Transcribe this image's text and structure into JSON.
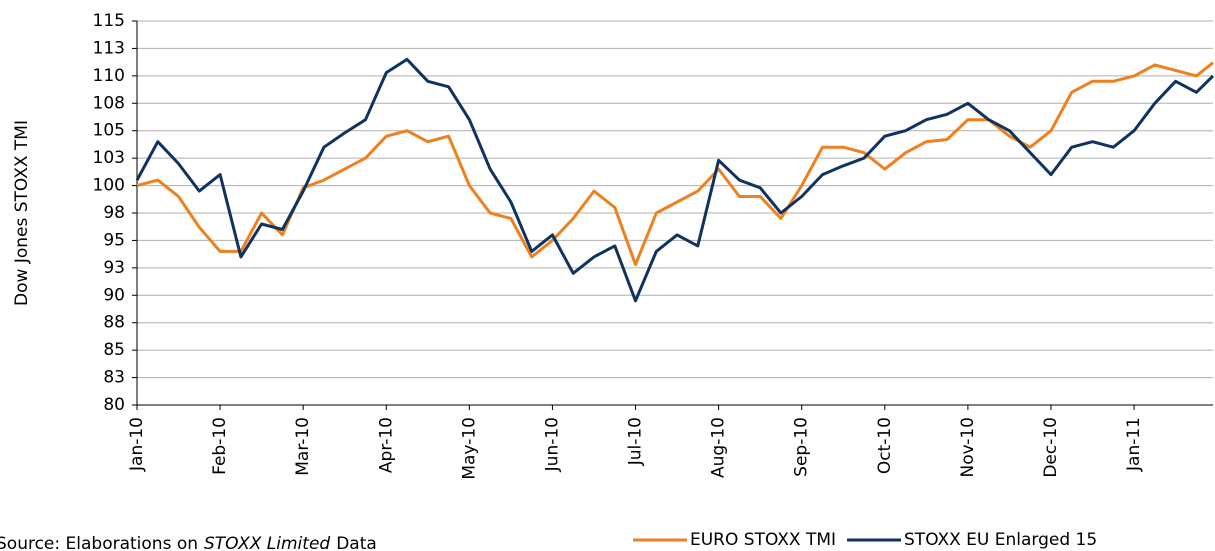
{
  "chart_data": {
    "type": "line",
    "y_label": "Dow Jones STOXX TMI",
    "source": {
      "prefix": "Source: Elaborations on",
      "emphasis": "STOXX Limited",
      "suffix": "Data"
    },
    "xlim": [
      0,
      12.95
    ],
    "xticks": [
      {
        "value": 0,
        "label": "Jan-10"
      },
      {
        "value": 1,
        "label": "Feb-10"
      },
      {
        "value": 2,
        "label": "Mar-10"
      },
      {
        "value": 3,
        "label": "Apr-10"
      },
      {
        "value": 4,
        "label": "May-10"
      },
      {
        "value": 5,
        "label": "Jun-10"
      },
      {
        "value": 6,
        "label": "Jul-10"
      },
      {
        "value": 7,
        "label": "Aug-10"
      },
      {
        "value": 8,
        "label": "Sep-10"
      },
      {
        "value": 9,
        "label": "Oct-10"
      },
      {
        "value": 10,
        "label": "Nov-10"
      },
      {
        "value": 11,
        "label": "Dec-10"
      },
      {
        "value": 12,
        "label": "Jan-11"
      }
    ],
    "ylim": [
      80,
      115
    ],
    "yticks": [
      80,
      {
        "value": 82.5,
        "label": "83"
      },
      85,
      {
        "value": 87.5,
        "label": "88"
      },
      90,
      {
        "value": 92.5,
        "label": "93"
      },
      95,
      {
        "value": 97.5,
        "label": "98"
      },
      100,
      {
        "value": 102.5,
        "label": "103"
      },
      105,
      {
        "value": 107.5,
        "label": "108"
      },
      110,
      {
        "value": 112.5,
        "label": "113"
      },
      115
    ],
    "grid": true,
    "legend": "bottom-right",
    "x": [
      0,
      0.25,
      0.5,
      0.75,
      1,
      1.25,
      1.5,
      1.75,
      2,
      2.25,
      2.5,
      2.75,
      3,
      3.25,
      3.5,
      3.75,
      4,
      4.25,
      4.5,
      4.75,
      5,
      5.25,
      5.5,
      5.75,
      6,
      6.25,
      6.5,
      6.75,
      7,
      7.25,
      7.5,
      7.75,
      8,
      8.25,
      8.5,
      8.75,
      9,
      9.25,
      9.5,
      9.75,
      10,
      10.25,
      10.5,
      10.75,
      11,
      11.25,
      11.5,
      11.75,
      12,
      12.25,
      12.5,
      12.75,
      12.95
    ],
    "series": [
      {
        "name": "EURO STOXX TMI",
        "color": "#f07f1e",
        "values": [
          100,
          100.5,
          99,
          96.2,
          94,
          94,
          97.5,
          95.5,
          99.8,
          100.5,
          101.5,
          102.5,
          104.5,
          105,
          104,
          104.5,
          100,
          97.5,
          97,
          93.5,
          95,
          97,
          99.5,
          98,
          92.8,
          97.5,
          98.5,
          99.5,
          101.5,
          99,
          99,
          97,
          100,
          103.5,
          103.5,
          103,
          101.5,
          103,
          104,
          104.2,
          106,
          106,
          104.5,
          103.5,
          105,
          108.5,
          109.5,
          109.5,
          110,
          111,
          110.5,
          110,
          111.2
        ]
      },
      {
        "name": "STOXX EU Enlarged 15",
        "color": "#0f3360",
        "values": [
          100.5,
          104,
          102,
          99.5,
          101,
          93.5,
          96.5,
          96,
          99.5,
          103.5,
          104.8,
          106,
          110.3,
          111.5,
          109.5,
          109,
          106,
          101.5,
          98.5,
          94,
          95.5,
          92,
          93.5,
          94.5,
          89.5,
          94,
          95.5,
          94.5,
          102.3,
          100.5,
          99.8,
          97.5,
          99,
          101,
          101.8,
          102.5,
          104.5,
          105,
          106,
          106.5,
          107.5,
          106,
          105,
          103,
          101,
          103.5,
          104,
          103.5,
          105,
          107.5,
          109.5,
          108.5,
          110
        ]
      }
    ]
  }
}
